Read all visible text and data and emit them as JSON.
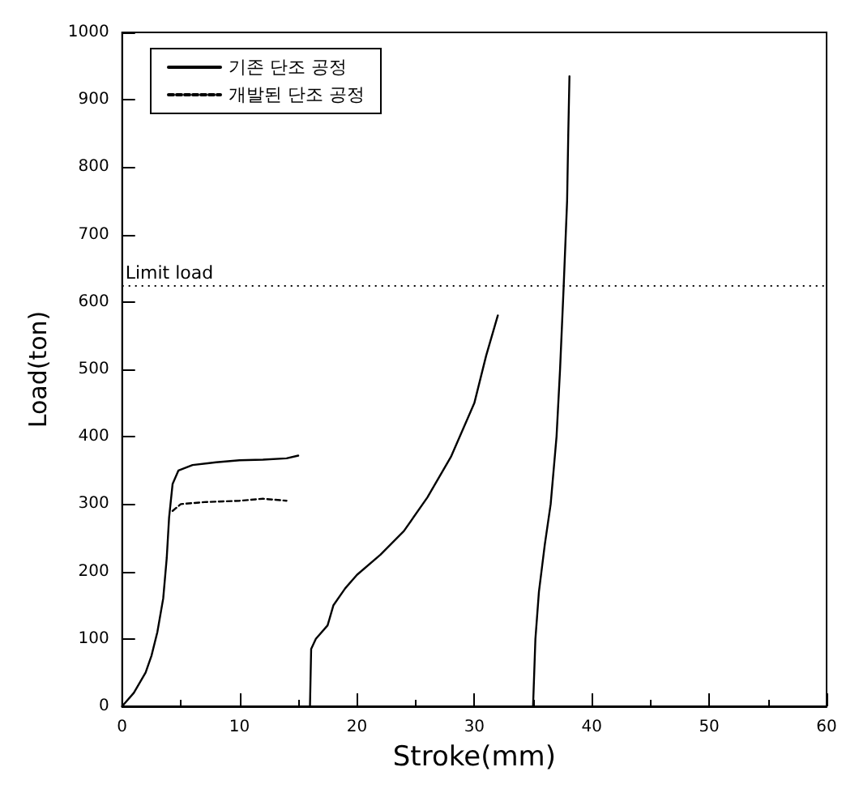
{
  "chart_data": {
    "type": "line",
    "xlabel": "Stroke(mm)",
    "ylabel": "Load(ton)",
    "xlim": [
      0,
      60
    ],
    "ylim": [
      0,
      1000
    ],
    "xticks": [
      0,
      10,
      20,
      30,
      40,
      50,
      60
    ],
    "yticks": [
      0,
      100,
      200,
      300,
      400,
      500,
      600,
      700,
      800,
      900,
      1000
    ],
    "grid": false,
    "legend": "top left",
    "marker": "none",
    "series": [
      {
        "name": "기존 단조 공정",
        "color": "#000000",
        "line_style": "solid",
        "x": [
          0,
          1,
          2,
          2.5,
          3,
          3.5,
          3.8,
          4,
          4.3,
          4.8,
          6,
          8,
          10,
          12,
          14,
          15,
          15.5,
          16,
          16.1,
          16.5,
          17.5,
          18,
          19,
          20,
          22,
          24,
          26,
          28,
          30,
          31,
          32,
          33.5,
          35,
          35.2,
          35.5,
          36,
          36.5,
          37,
          37.3,
          37.6,
          37.9,
          38,
          38.1
        ],
        "values": [
          0,
          20,
          50,
          75,
          110,
          160,
          220,
          280,
          330,
          350,
          358,
          362,
          365,
          366,
          368,
          372,
          null,
          0,
          85,
          100,
          120,
          150,
          175,
          195,
          225,
          260,
          310,
          370,
          450,
          520,
          580,
          null,
          0,
          100,
          170,
          240,
          300,
          400,
          500,
          620,
          750,
          850,
          935
        ]
      },
      {
        "name": "개발된 단조 공정",
        "color": "#000000",
        "line_style": "dashed",
        "x": [
          4.3,
          5,
          7,
          10,
          12,
          14
        ],
        "values": [
          290,
          300,
          303,
          305,
          308,
          305
        ]
      }
    ],
    "ref_lines": [
      {
        "axis": "y",
        "value": 625,
        "label": "Limit load",
        "line_style": "dotted",
        "color": "#000000"
      }
    ]
  }
}
